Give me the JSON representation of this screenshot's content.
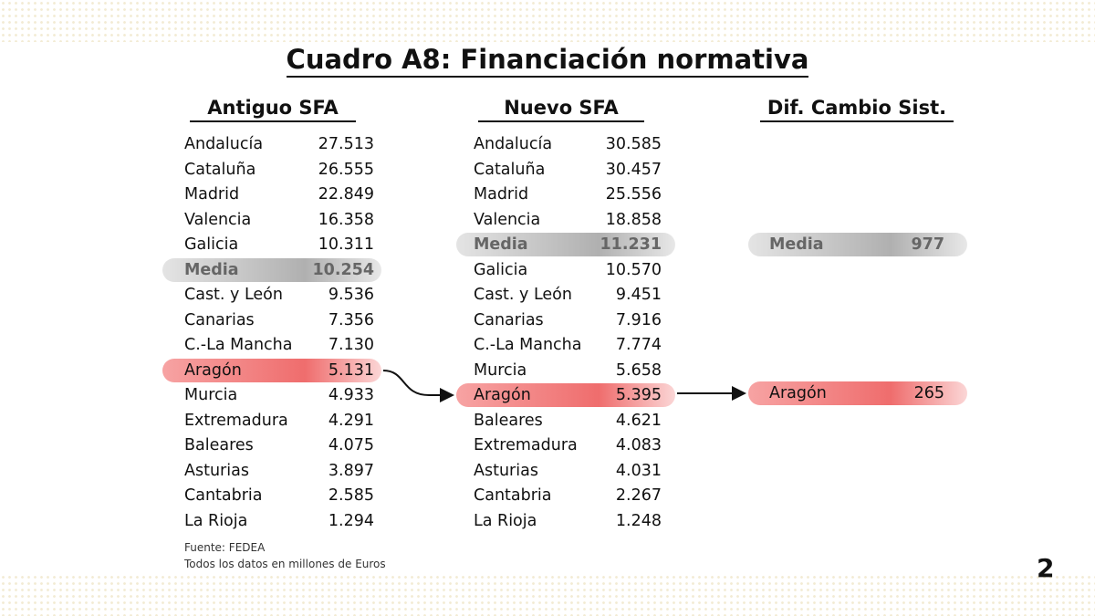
{
  "title": "Cuadro A8: Financiación normativa",
  "tables": [
    {
      "header": "Antiguo SFA",
      "rows": [
        [
          "Andalucía",
          "27.513"
        ],
        [
          "Cataluña",
          "26.555"
        ],
        [
          "Madrid",
          "22.849"
        ],
        [
          "Valencia",
          "16.358"
        ],
        [
          "Galicia",
          "10.311"
        ],
        [
          "Media",
          "10.254"
        ],
        [
          "Cast. y León",
          "9.536"
        ],
        [
          "Canarias",
          "7.356"
        ],
        [
          "C.-La Mancha",
          "7.130"
        ],
        [
          "Aragón",
          "5.131"
        ],
        [
          "Murcia",
          "4.933"
        ],
        [
          "Extremadura",
          "4.291"
        ],
        [
          "Baleares",
          "4.075"
        ],
        [
          "Asturias",
          "3.897"
        ],
        [
          "Cantabria",
          "2.585"
        ],
        [
          "La Rioja",
          "1.294"
        ]
      ]
    },
    {
      "header": "Nuevo SFA",
      "rows": [
        [
          "Andalucía",
          "30.585"
        ],
        [
          "Cataluña",
          "30.457"
        ],
        [
          "Madrid",
          "25.556"
        ],
        [
          "Valencia",
          "18.858"
        ],
        [
          "Media",
          "11.231"
        ],
        [
          "Galicia",
          "10.570"
        ],
        [
          "Cast. y León",
          "9.451"
        ],
        [
          "Canarias",
          "7.916"
        ],
        [
          "C.-La Mancha",
          "7.774"
        ],
        [
          "Murcia",
          "5.658"
        ],
        [
          "Aragón",
          "5.395"
        ],
        [
          "Baleares",
          "4.621"
        ],
        [
          "Extremadura",
          "4.083"
        ],
        [
          "Asturias",
          "4.031"
        ],
        [
          "Cantabria",
          "2.267"
        ],
        [
          "La Rioja",
          "1.248"
        ]
      ]
    },
    {
      "header": "Dif. Cambio Sist.",
      "rows": [
        [
          "Media",
          "977"
        ],
        [
          "Aragón",
          "265"
        ]
      ]
    }
  ],
  "footer": {
    "source": "Fuente: FEDEA",
    "note": "Todos los datos en millones de Euros"
  },
  "page_number": "2"
}
